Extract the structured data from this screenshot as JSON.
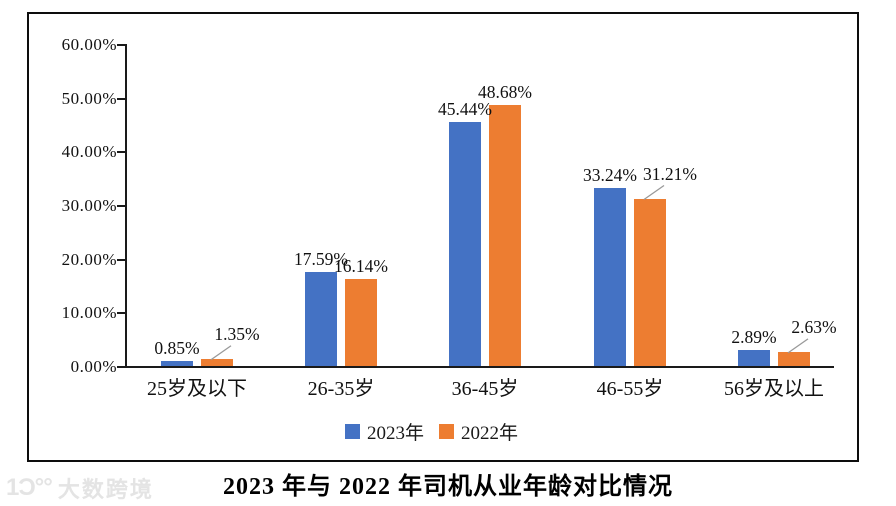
{
  "chart_data": {
    "type": "bar",
    "title": "2023 年与 2022 年司机从业年龄对比情况",
    "categories": [
      "25岁及以下",
      "26-35岁",
      "36-45岁",
      "46-55岁",
      "56岁及以上"
    ],
    "series": [
      {
        "name": "2023年",
        "color": "#4472C4",
        "values": [
          0.85,
          17.59,
          45.44,
          33.24,
          2.89
        ],
        "labels": [
          "0.85%",
          "17.59%",
          "45.44%",
          "33.24%",
          "2.89%"
        ]
      },
      {
        "name": "2022年",
        "color": "#ED7D31",
        "values": [
          1.35,
          16.14,
          48.68,
          31.21,
          2.63
        ],
        "labels": [
          "1.35%",
          "16.14%",
          "48.68%",
          "31.21%",
          "2.63%"
        ]
      }
    ],
    "xlabel": "",
    "ylabel": "",
    "ylim": [
      0,
      60
    ],
    "y_ticks": [
      "0.00%",
      "10.00%",
      "20.00%",
      "30.00%",
      "40.00%",
      "50.00%",
      "60.00%"
    ],
    "grid": false,
    "legend_position": "bottom",
    "legend": [
      "2023年",
      "2022年"
    ],
    "callout_categories": [
      "25岁及以下",
      "46-55岁",
      "56岁及以上"
    ],
    "leader_line_color": "#999999"
  },
  "watermark": {
    "logo": "1Ͻ°°",
    "text": "大数跨境"
  }
}
